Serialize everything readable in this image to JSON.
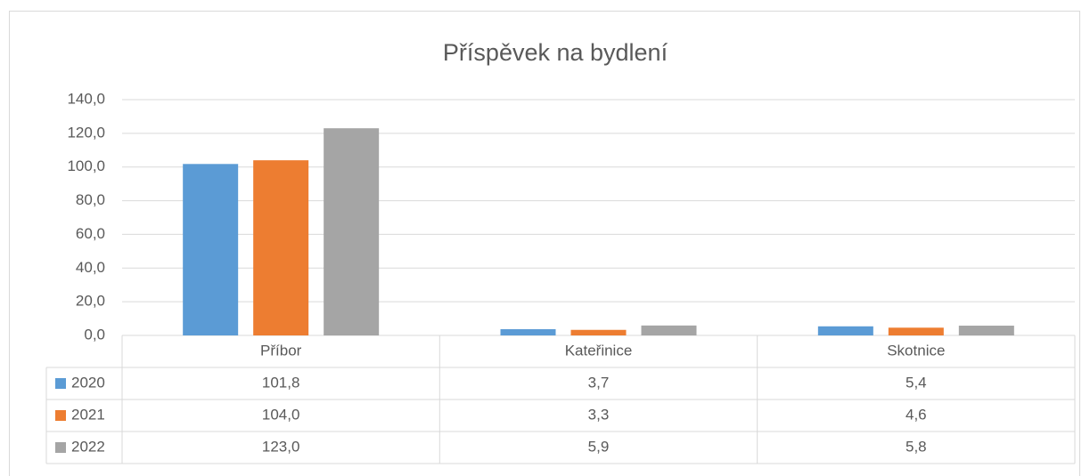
{
  "chart_data": {
    "type": "bar",
    "title": "Příspěvek na bydlení",
    "categories": [
      "Příbor",
      "Kateřinice",
      "Skotnice"
    ],
    "series": [
      {
        "name": "2020",
        "color": "#5b9bd5",
        "values": [
          101.8,
          3.7,
          5.4
        ],
        "value_labels": [
          "101,8",
          "3,7",
          "5,4"
        ]
      },
      {
        "name": "2021",
        "color": "#ed7d31",
        "values": [
          104.0,
          3.3,
          4.6
        ],
        "value_labels": [
          "104,0",
          "3,3",
          "4,6"
        ]
      },
      {
        "name": "2022",
        "color": "#a5a5a5",
        "values": [
          123.0,
          5.9,
          5.8
        ],
        "value_labels": [
          "123,0",
          "5,9",
          "5,8"
        ]
      }
    ],
    "ylim": [
      0,
      140
    ],
    "yticks": [
      {
        "value": 0,
        "label": "0,0"
      },
      {
        "value": 20,
        "label": "20,0"
      },
      {
        "value": 40,
        "label": "40,0"
      },
      {
        "value": 60,
        "label": "60,0"
      },
      {
        "value": 80,
        "label": "80,0"
      },
      {
        "value": 100,
        "label": "100,0"
      },
      {
        "value": 120,
        "label": "120,0"
      },
      {
        "value": 140,
        "label": "140,0"
      }
    ],
    "grid": true
  }
}
